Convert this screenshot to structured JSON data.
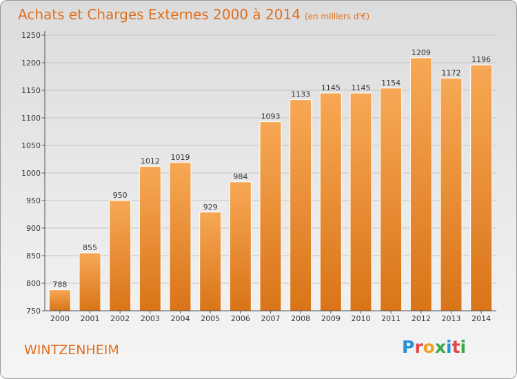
{
  "title": "Achats et Charges Externes 2000 à 2014",
  "unit": "(en milliers d'€)",
  "commune": "WINTZENHEIM",
  "logo": {
    "text": "Proxiti",
    "letters": [
      "P",
      "r",
      "o",
      "x",
      "i",
      "t",
      "i"
    ],
    "colors": [
      "#2a8fd6",
      "#e04848",
      "#f0a020",
      "#3aaa48",
      "#2a8fd6",
      "#e04848",
      "#3aaa48"
    ]
  },
  "colors": {
    "bar_top": "#f7a855",
    "bar_bottom": "#d97418",
    "accent": "#e07020"
  },
  "chart_data": {
    "type": "bar",
    "categories": [
      "2000",
      "2001",
      "2002",
      "2003",
      "2004",
      "2005",
      "2006",
      "2007",
      "2008",
      "2009",
      "2010",
      "2011",
      "2012",
      "2013",
      "2014"
    ],
    "values": [
      788,
      855,
      950,
      1012,
      1019,
      929,
      984,
      1093,
      1133,
      1145,
      1145,
      1154,
      1209,
      1172,
      1196
    ],
    "yticks": [
      750,
      800,
      850,
      900,
      950,
      1000,
      1050,
      1100,
      1150,
      1200,
      1250
    ],
    "ylim": [
      750,
      1250
    ],
    "grid": true,
    "title": "Achats et Charges Externes 2000 à 2014"
  }
}
